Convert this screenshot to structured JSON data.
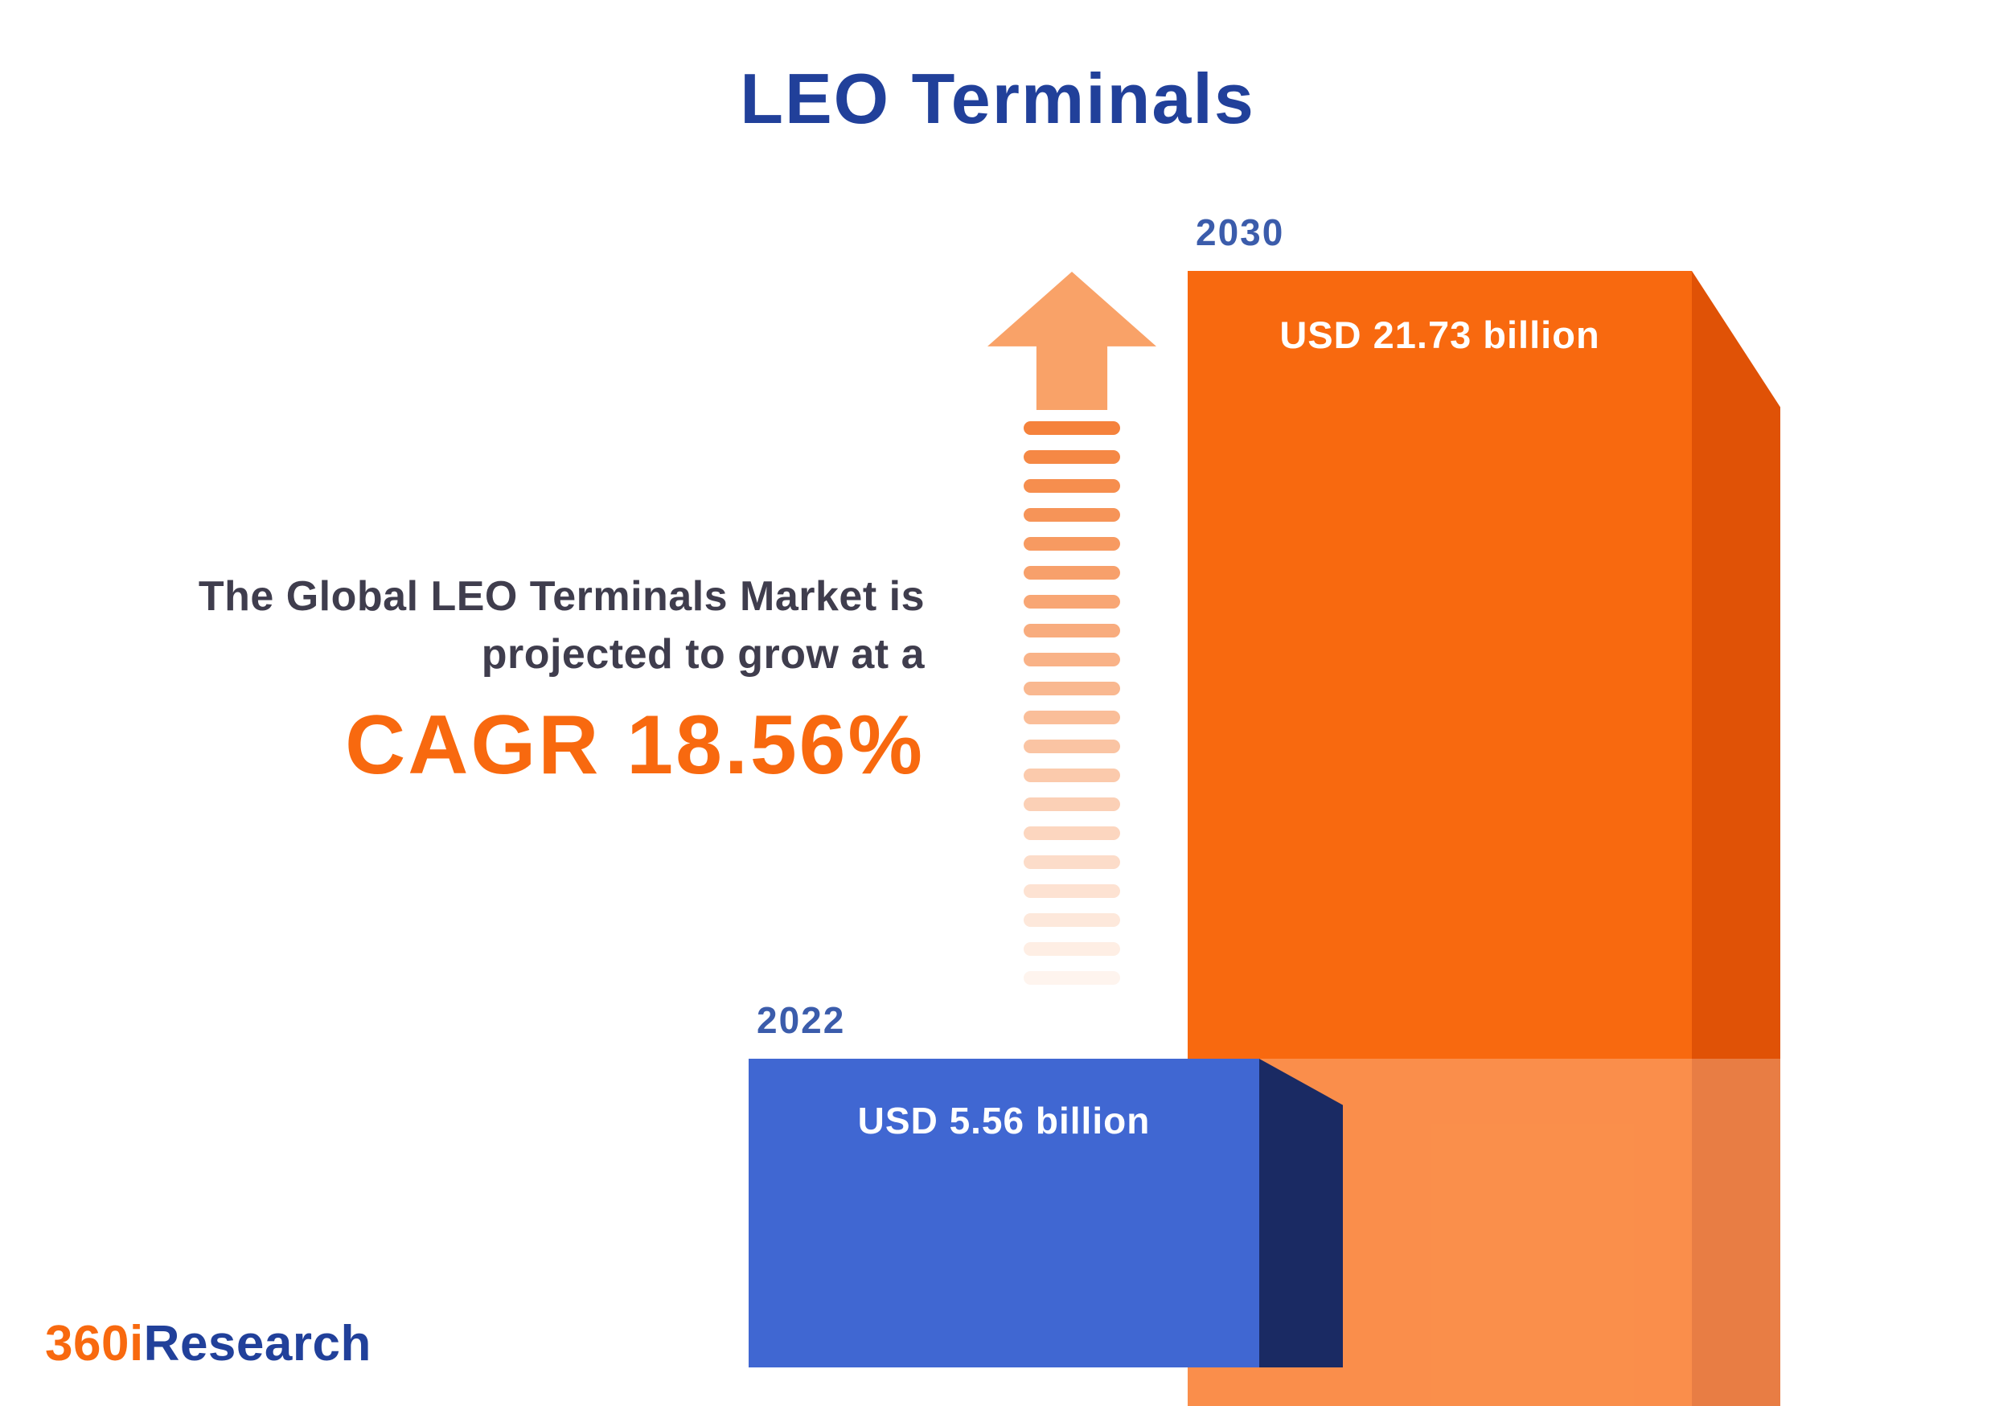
{
  "page": {
    "title": "LEO Terminals"
  },
  "description": {
    "line1": "The Global LEO Terminals Market is",
    "line2": "projected to grow at a",
    "cagr": "CAGR 18.56%"
  },
  "bars": {
    "start": {
      "year": "2022",
      "value_label": "USD 5.56 billion"
    },
    "end": {
      "year": "2030",
      "value_label": "USD 21.73 billion"
    }
  },
  "logo": {
    "prefix": "360i",
    "suffix": "Research"
  },
  "colors": {
    "title_blue": "#21409a",
    "year_label_blue": "#3b5cab",
    "orange_main": "#f8690f",
    "orange_side": "#e05206",
    "blue_main": "#4067d2",
    "blue_side": "#1a2a63",
    "arrow_orange": "#f5823c",
    "text_dark": "#3f3d4d"
  },
  "chart_data": {
    "type": "bar",
    "title": "LEO Terminals",
    "categories": [
      "2022",
      "2030"
    ],
    "values": [
      5.56,
      21.73
    ],
    "unit": "USD billion",
    "value_labels": [
      "USD 5.56 billion",
      "USD 21.73 billion"
    ],
    "cagr_percent": 18.56,
    "annotations": [
      "The Global LEO Terminals Market is projected to grow at a CAGR 18.56%"
    ],
    "legend_position": "none",
    "grid": false,
    "bar_colors": [
      "#4067d2",
      "#f8690f"
    ],
    "source": "360iResearch"
  }
}
